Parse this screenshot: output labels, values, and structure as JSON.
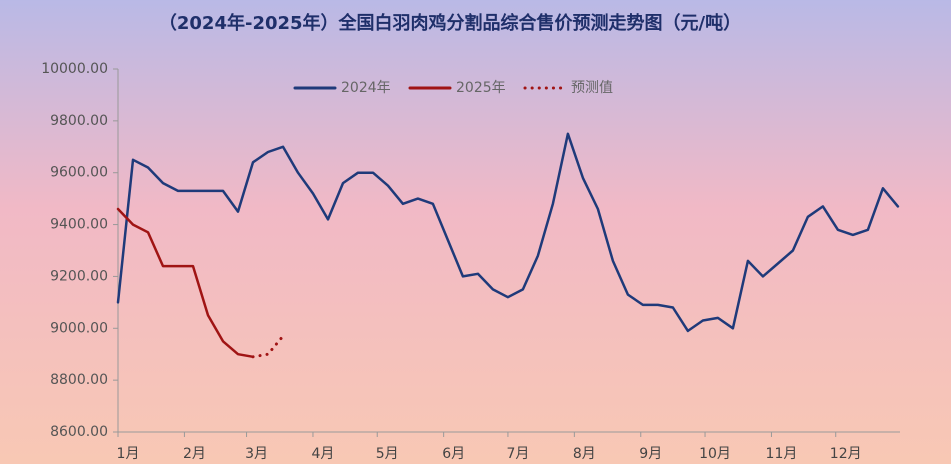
{
  "chart_data": {
    "type": "line",
    "title": "（2024年-2025年）全国白羽肉鸡分割品综合售价预测走势图（元/吨）",
    "x": [
      1,
      8,
      15,
      22,
      29,
      36,
      43,
      50,
      57,
      64,
      71,
      78,
      85,
      92,
      99,
      106,
      113,
      120,
      127,
      134,
      141,
      148,
      155,
      162,
      169,
      176,
      183,
      190,
      197,
      204,
      211,
      218,
      225,
      232,
      239,
      246,
      253,
      260,
      267,
      274,
      281,
      288,
      295,
      302,
      309,
      316,
      323,
      330,
      337,
      344,
      351,
      358,
      365
    ],
    "xlim": [
      1,
      366
    ],
    "xticks": [
      {
        "value": 1,
        "label": "1月"
      },
      {
        "value": 32,
        "label": "2月"
      },
      {
        "value": 61,
        "label": "3月"
      },
      {
        "value": 92,
        "label": "4月"
      },
      {
        "value": 122,
        "label": "5月"
      },
      {
        "value": 153,
        "label": "6月"
      },
      {
        "value": 183,
        "label": "7月"
      },
      {
        "value": 214,
        "label": "8月"
      },
      {
        "value": 245,
        "label": "9月"
      },
      {
        "value": 275,
        "label": "10月"
      },
      {
        "value": 306,
        "label": "11月"
      },
      {
        "value": 336,
        "label": "12月"
      }
    ],
    "ylim": [
      8600,
      10000
    ],
    "yticks": [
      {
        "value": 8600,
        "label": "8600.00"
      },
      {
        "value": 8800,
        "label": "8800.00"
      },
      {
        "value": 9000,
        "label": "9000.00"
      },
      {
        "value": 9200,
        "label": "9200.00"
      },
      {
        "value": 9400,
        "label": "9400.00"
      },
      {
        "value": 9600,
        "label": "9600.00"
      },
      {
        "value": 9800,
        "label": "9800.00"
      },
      {
        "value": 10000,
        "label": "10000.00"
      }
    ],
    "series": [
      {
        "name": "2024年",
        "color": "#1f3a7a",
        "values": [
          9100,
          9650,
          9620,
          9560,
          9530,
          9530,
          9530,
          9530,
          9450,
          9640,
          9680,
          9700,
          9600,
          9520,
          9420,
          9560,
          9600,
          9600,
          9550,
          9480,
          9500,
          9480,
          9340,
          9200,
          9210,
          9150,
          9120,
          9150,
          9280,
          9480,
          9750,
          9580,
          9460,
          9260,
          9130,
          9090,
          9090,
          9080,
          8990,
          9030,
          9040,
          9000,
          9260,
          9200,
          9250,
          9300,
          9430,
          9470,
          9380,
          9360,
          9380,
          9540,
          9470
        ]
      },
      {
        "name": "2025年",
        "color": "#a01414",
        "values": [
          9460,
          9400,
          9370,
          9240,
          9240,
          9240,
          9050,
          8950,
          8900,
          8890,
          null,
          null,
          null,
          null,
          null,
          null,
          null,
          null,
          null,
          null,
          null,
          null,
          null,
          null,
          null,
          null,
          null,
          null,
          null,
          null,
          null,
          null,
          null,
          null,
          null,
          null,
          null,
          null,
          null,
          null,
          null,
          null,
          null,
          null,
          null,
          null,
          null,
          null,
          null,
          null,
          null,
          null,
          null
        ]
      },
      {
        "name": "预测值",
        "color": "#a01414",
        "dashed": true,
        "values": [
          null,
          null,
          null,
          null,
          null,
          null,
          null,
          null,
          null,
          8890,
          8900,
          8970,
          null,
          null,
          null,
          null,
          null,
          null,
          null,
          null,
          null,
          null,
          null,
          null,
          null,
          null,
          null,
          null,
          null,
          null,
          null,
          null,
          null,
          null,
          null,
          null,
          null,
          null,
          null,
          null,
          null,
          null,
          null,
          null,
          null,
          null,
          null,
          null,
          null,
          null,
          null,
          null,
          null
        ]
      }
    ]
  }
}
